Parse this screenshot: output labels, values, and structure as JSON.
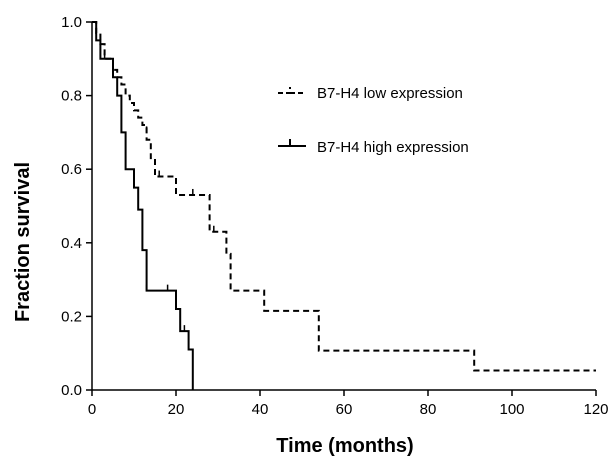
{
  "chart_data": {
    "type": "line",
    "title": "",
    "xlabel": "Time (months)",
    "ylabel": "Fraction survival",
    "xlim": [
      0,
      120
    ],
    "ylim": [
      0,
      1
    ],
    "x_ticks": [
      0,
      20,
      40,
      60,
      80,
      100,
      120
    ],
    "y_ticks": [
      0.0,
      0.2,
      0.4,
      0.6,
      0.8,
      1.0
    ],
    "x_tick_labels": [
      "0",
      "20",
      "40",
      "60",
      "80",
      "100",
      "120"
    ],
    "y_tick_labels": [
      "0.0",
      "0.2",
      "0.4",
      "0.6",
      "0.8",
      "1.0"
    ],
    "grid": false,
    "legend_position": "top-right",
    "series": [
      {
        "name": "B7-H4 low expression",
        "style": "dashed",
        "color": "#000000",
        "x": [
          0,
          1,
          2,
          3,
          5,
          6,
          7,
          8,
          9,
          10,
          11,
          12,
          13,
          14,
          15,
          18,
          20,
          26,
          28,
          32,
          33,
          40,
          41,
          53,
          54,
          90,
          91,
          120
        ],
        "y": [
          1.0,
          0.97,
          0.94,
          0.9,
          0.87,
          0.85,
          0.83,
          0.8,
          0.78,
          0.76,
          0.74,
          0.72,
          0.68,
          0.63,
          0.58,
          0.58,
          0.53,
          0.53,
          0.43,
          0.37,
          0.27,
          0.27,
          0.215,
          0.215,
          0.107,
          0.107,
          0.053,
          0.053
        ],
        "censor_x": [
          13,
          16,
          24,
          29
        ],
        "censor_y": [
          0.7,
          0.58,
          0.53,
          0.43
        ]
      },
      {
        "name": "B7-H4 high expression",
        "style": "solid",
        "color": "#000000",
        "x": [
          0,
          1,
          2,
          5,
          6,
          7,
          8,
          9,
          10,
          11,
          12,
          13,
          14,
          15,
          17,
          20,
          21,
          22,
          23,
          24
        ],
        "y": [
          1.0,
          0.95,
          0.9,
          0.85,
          0.8,
          0.7,
          0.6,
          0.6,
          0.55,
          0.49,
          0.38,
          0.27,
          0.27,
          0.27,
          0.27,
          0.22,
          0.16,
          0.16,
          0.11,
          0.0
        ],
        "censor_x": [
          3,
          13,
          18,
          22
        ],
        "censor_y": [
          0.9,
          0.27,
          0.27,
          0.16
        ]
      }
    ]
  }
}
